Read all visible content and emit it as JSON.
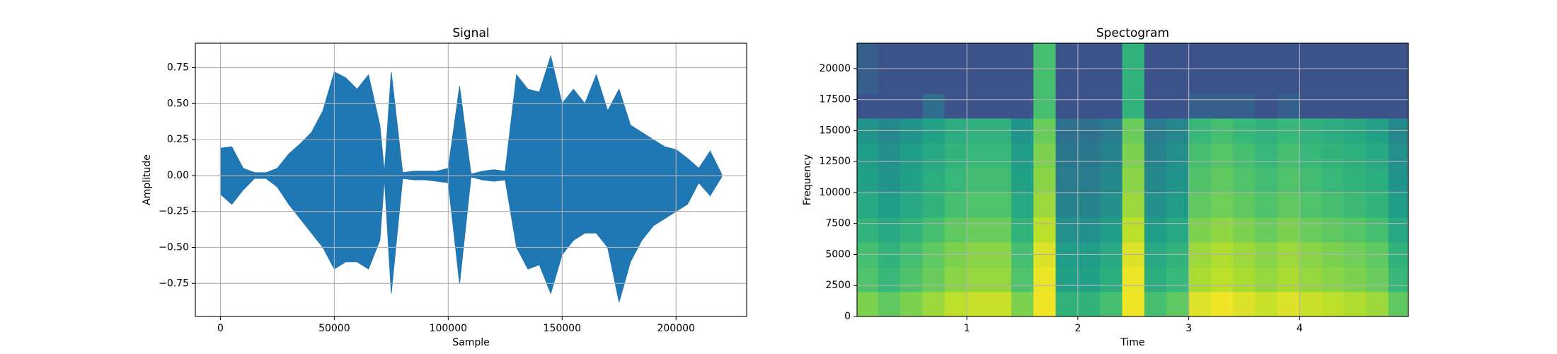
{
  "chart_data": [
    {
      "type": "area",
      "title": "Signal",
      "x_label": "Sample",
      "y_label": "Amplitude",
      "x": [
        0,
        5000,
        10000,
        15000,
        20000,
        25000,
        30000,
        35000,
        40000,
        45000,
        50000,
        55000,
        60000,
        65000,
        70000,
        72000,
        75000,
        80000,
        85000,
        90000,
        95000,
        100000,
        105000,
        110000,
        115000,
        120000,
        125000,
        130000,
        135000,
        140000,
        145000,
        150000,
        155000,
        160000,
        165000,
        170000,
        175000,
        180000,
        185000,
        190000,
        195000,
        200000,
        205000,
        210000,
        215000,
        220000
      ],
      "series": [
        {
          "name": "upper",
          "color": "#1f77b4",
          "values": [
            0.19,
            0.2,
            0.05,
            0.02,
            0.02,
            0.05,
            0.15,
            0.22,
            0.3,
            0.45,
            0.72,
            0.68,
            0.6,
            0.7,
            0.35,
            0.02,
            0.72,
            0.02,
            0.03,
            0.03,
            0.03,
            0.05,
            0.62,
            0.01,
            0.03,
            0.04,
            0.03,
            0.7,
            0.6,
            0.58,
            0.83,
            0.5,
            0.6,
            0.5,
            0.7,
            0.45,
            0.6,
            0.35,
            0.3,
            0.25,
            0.2,
            0.18,
            0.12,
            0.05,
            0.17,
            0.01
          ]
        },
        {
          "name": "lower",
          "color": "#1f77b4",
          "values": [
            -0.13,
            -0.2,
            -0.1,
            -0.02,
            -0.02,
            -0.08,
            -0.2,
            -0.3,
            -0.4,
            -0.5,
            -0.65,
            -0.6,
            -0.6,
            -0.65,
            -0.45,
            -0.02,
            -0.82,
            -0.02,
            -0.03,
            -0.03,
            -0.04,
            -0.05,
            -0.75,
            -0.01,
            -0.03,
            -0.04,
            -0.03,
            -0.5,
            -0.65,
            -0.62,
            -0.82,
            -0.55,
            -0.45,
            -0.4,
            -0.4,
            -0.5,
            -0.88,
            -0.6,
            -0.45,
            -0.35,
            -0.3,
            -0.25,
            -0.2,
            -0.05,
            -0.14,
            -0.01
          ]
        }
      ],
      "xlim": [
        -11000,
        231000
      ],
      "ylim": [
        -0.98,
        0.92
      ],
      "xticks": [
        0,
        50000,
        100000,
        150000,
        200000
      ],
      "yticks": [
        {
          "value": -0.75,
          "label": "−0.75"
        },
        {
          "value": -0.5,
          "label": "−0.50"
        },
        {
          "value": -0.25,
          "label": "−0.25"
        },
        {
          "value": 0,
          "label": "0.00"
        },
        0.25,
        {
          "value": 0.5,
          "label": "0.50"
        },
        0.75
      ],
      "grid": true
    },
    {
      "type": "heatmap",
      "title": "Spectogram",
      "x_label": "Time",
      "y_label": "Frequency",
      "colormap": "viridis",
      "xbins": [
        0,
        0.2,
        0.4,
        0.6,
        0.8,
        1,
        1.2,
        1.4,
        1.6,
        1.8,
        2,
        2.2,
        2.4,
        2.6,
        2.8,
        3,
        3.2,
        3.4,
        3.6,
        3.8,
        4,
        4.2,
        4.4,
        4.6,
        4.8,
        5
      ],
      "ybins": [
        0,
        2000,
        4000,
        6000,
        8000,
        10000,
        12000,
        14000,
        16000,
        18000,
        20000,
        22050
      ],
      "z": [
        [
          0.8,
          0.75,
          0.8,
          0.85,
          0.9,
          0.92,
          0.92,
          0.8,
          0.98,
          0.65,
          0.65,
          0.7,
          0.98,
          0.7,
          0.75,
          0.95,
          0.98,
          0.95,
          0.92,
          0.95,
          0.92,
          0.9,
          0.88,
          0.85,
          0.75
        ],
        [
          0.72,
          0.67,
          0.72,
          0.77,
          0.82,
          0.84,
          0.84,
          0.72,
          0.97,
          0.57,
          0.57,
          0.62,
          0.97,
          0.62,
          0.67,
          0.87,
          0.9,
          0.87,
          0.84,
          0.87,
          0.84,
          0.82,
          0.8,
          0.77,
          0.67
        ],
        [
          0.7,
          0.65,
          0.7,
          0.75,
          0.8,
          0.82,
          0.82,
          0.7,
          0.95,
          0.55,
          0.55,
          0.6,
          0.95,
          0.6,
          0.65,
          0.85,
          0.88,
          0.85,
          0.82,
          0.85,
          0.82,
          0.8,
          0.78,
          0.75,
          0.65
        ],
        [
          0.65,
          0.6,
          0.65,
          0.7,
          0.75,
          0.77,
          0.77,
          0.65,
          0.9,
          0.5,
          0.5,
          0.55,
          0.9,
          0.55,
          0.6,
          0.8,
          0.83,
          0.8,
          0.77,
          0.8,
          0.77,
          0.75,
          0.73,
          0.7,
          0.6
        ],
        [
          0.6,
          0.55,
          0.6,
          0.65,
          0.7,
          0.72,
          0.72,
          0.6,
          0.85,
          0.45,
          0.45,
          0.5,
          0.85,
          0.5,
          0.55,
          0.75,
          0.78,
          0.75,
          0.72,
          0.75,
          0.72,
          0.7,
          0.68,
          0.65,
          0.55
        ],
        [
          0.57,
          0.52,
          0.57,
          0.62,
          0.67,
          0.69,
          0.69,
          0.57,
          0.82,
          0.42,
          0.42,
          0.47,
          0.82,
          0.47,
          0.52,
          0.72,
          0.75,
          0.72,
          0.69,
          0.72,
          0.69,
          0.67,
          0.65,
          0.62,
          0.52
        ],
        [
          0.55,
          0.5,
          0.55,
          0.6,
          0.65,
          0.67,
          0.67,
          0.55,
          0.8,
          0.4,
          0.4,
          0.45,
          0.8,
          0.45,
          0.5,
          0.7,
          0.73,
          0.7,
          0.67,
          0.7,
          0.67,
          0.65,
          0.63,
          0.6,
          0.5
        ],
        [
          0.52,
          0.47,
          0.52,
          0.57,
          0.62,
          0.64,
          0.64,
          0.52,
          0.77,
          0.37,
          0.37,
          0.42,
          0.77,
          0.42,
          0.47,
          0.67,
          0.7,
          0.67,
          0.64,
          0.67,
          0.64,
          0.62,
          0.6,
          0.57,
          0.47
        ],
        [
          0.25,
          0.25,
          0.25,
          0.35,
          0.25,
          0.25,
          0.25,
          0.25,
          0.7,
          0.25,
          0.25,
          0.25,
          0.65,
          0.25,
          0.25,
          0.3,
          0.3,
          0.3,
          0.25,
          0.3,
          0.25,
          0.25,
          0.25,
          0.25,
          0.25
        ],
        [
          0.3,
          0.25,
          0.25,
          0.25,
          0.25,
          0.25,
          0.25,
          0.25,
          0.7,
          0.25,
          0.25,
          0.25,
          0.65,
          0.25,
          0.25,
          0.25,
          0.25,
          0.25,
          0.25,
          0.25,
          0.25,
          0.25,
          0.25,
          0.25,
          0.25
        ],
        [
          0.3,
          0.25,
          0.25,
          0.25,
          0.25,
          0.25,
          0.25,
          0.25,
          0.7,
          0.25,
          0.25,
          0.25,
          0.65,
          0.25,
          0.25,
          0.25,
          0.25,
          0.25,
          0.25,
          0.25,
          0.25,
          0.25,
          0.25,
          0.25,
          0.25
        ]
      ],
      "xlim": [
        0.01,
        4.98
      ],
      "ylim": [
        0,
        22050
      ],
      "xticks": [
        1,
        2,
        3,
        4
      ],
      "yticks": [
        0,
        2500,
        5000,
        7500,
        10000,
        12500,
        15000,
        17500,
        20000
      ],
      "grid": true
    }
  ]
}
